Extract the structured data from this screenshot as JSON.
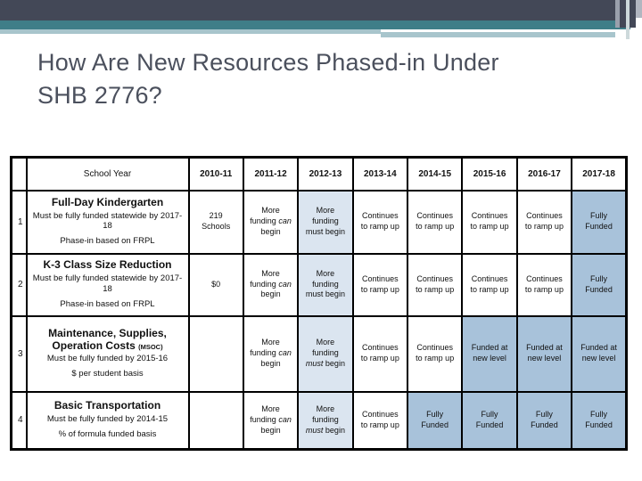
{
  "slide": {
    "title_line1": "How Are New Resources Phased-in Under",
    "title_line2": "SHB 2776?"
  },
  "table": {
    "header": [
      "School Year",
      "2010-11",
      "2011-12",
      "2012-13",
      "2013-14",
      "2014-15",
      "2015-16",
      "2016-17",
      "2017-18"
    ],
    "rows": [
      {
        "num": "1",
        "title": "Full-Day Kindergarten",
        "title_note": "",
        "desc1": "Must be fully funded statewide by 2017-18",
        "desc2": "Phase-in based on FRPL",
        "cells": [
          {
            "t": "219 Schools",
            "bg": ""
          },
          {
            "t": "More funding can begin",
            "em": "can",
            "bg": ""
          },
          {
            "t": "More funding must begin",
            "bg": "lb"
          },
          {
            "t": "Continues to ramp up",
            "bg": ""
          },
          {
            "t": "Continues to ramp up",
            "bg": ""
          },
          {
            "t": "Continues to ramp up",
            "bg": ""
          },
          {
            "t": "Continues to ramp up",
            "bg": ""
          },
          {
            "t": "Fully Funded",
            "bg": "sb"
          }
        ]
      },
      {
        "num": "2",
        "title": "K-3 Class Size Reduction",
        "title_note": "",
        "desc1": "Must be fully funded statewide by 2017-18",
        "desc2": "Phase-in based on FRPL",
        "cells": [
          {
            "t": "$0",
            "bg": ""
          },
          {
            "t": "More funding can begin",
            "em": "can",
            "bg": ""
          },
          {
            "t": "More funding must begin",
            "bg": "lb"
          },
          {
            "t": "Continues to ramp up",
            "bg": ""
          },
          {
            "t": "Continues to ramp up",
            "bg": ""
          },
          {
            "t": "Continues to ramp up",
            "bg": ""
          },
          {
            "t": "Continues to ramp up",
            "bg": ""
          },
          {
            "t": "Fully Funded",
            "bg": "sb"
          }
        ]
      },
      {
        "num": "3",
        "title": "Maintenance, Supplies, Operation Costs",
        "title_note": "(MSOC)",
        "desc1": "Must be fully funded by 2015-16",
        "desc2": "$ per student basis",
        "cells": [
          {
            "t": "",
            "bg": ""
          },
          {
            "t": "More funding can begin",
            "em": "can",
            "bg": ""
          },
          {
            "t": "More funding must begin",
            "em": "must",
            "bg": "lb"
          },
          {
            "t": "Continues to ramp up",
            "bg": ""
          },
          {
            "t": "Continues to ramp up",
            "bg": ""
          },
          {
            "t": "Funded at new level",
            "bg": "sb"
          },
          {
            "t": "Funded at new level",
            "bg": "sb"
          },
          {
            "t": "Funded at new level",
            "bg": "sb"
          }
        ]
      },
      {
        "num": "4",
        "title": "Basic Transportation",
        "title_note": "",
        "desc1": "Must be fully funded by 2014-15",
        "desc2": "% of formula funded basis",
        "cells": [
          {
            "t": "",
            "bg": ""
          },
          {
            "t": "More funding can begin",
            "em": "can",
            "bg": ""
          },
          {
            "t": "More funding must begin",
            "em": "must",
            "bg": "lb"
          },
          {
            "t": "Continues to ramp up",
            "bg": ""
          },
          {
            "t": "Fully Funded",
            "bg": "sb"
          },
          {
            "t": "Fully Funded",
            "bg": "sb"
          },
          {
            "t": "Fully Funded",
            "bg": "sb"
          },
          {
            "t": "Fully Funded",
            "bg": "sb"
          }
        ]
      }
    ]
  },
  "colors": {
    "header_bar": "#434857",
    "accent_teal": "#3f7e88",
    "accent_light_teal": "#a8c5cc",
    "title_text": "#4b505d",
    "cell_light_blue": "#dbe5f0",
    "cell_steel_blue": "#a8c2da",
    "table_border": "#000000"
  }
}
